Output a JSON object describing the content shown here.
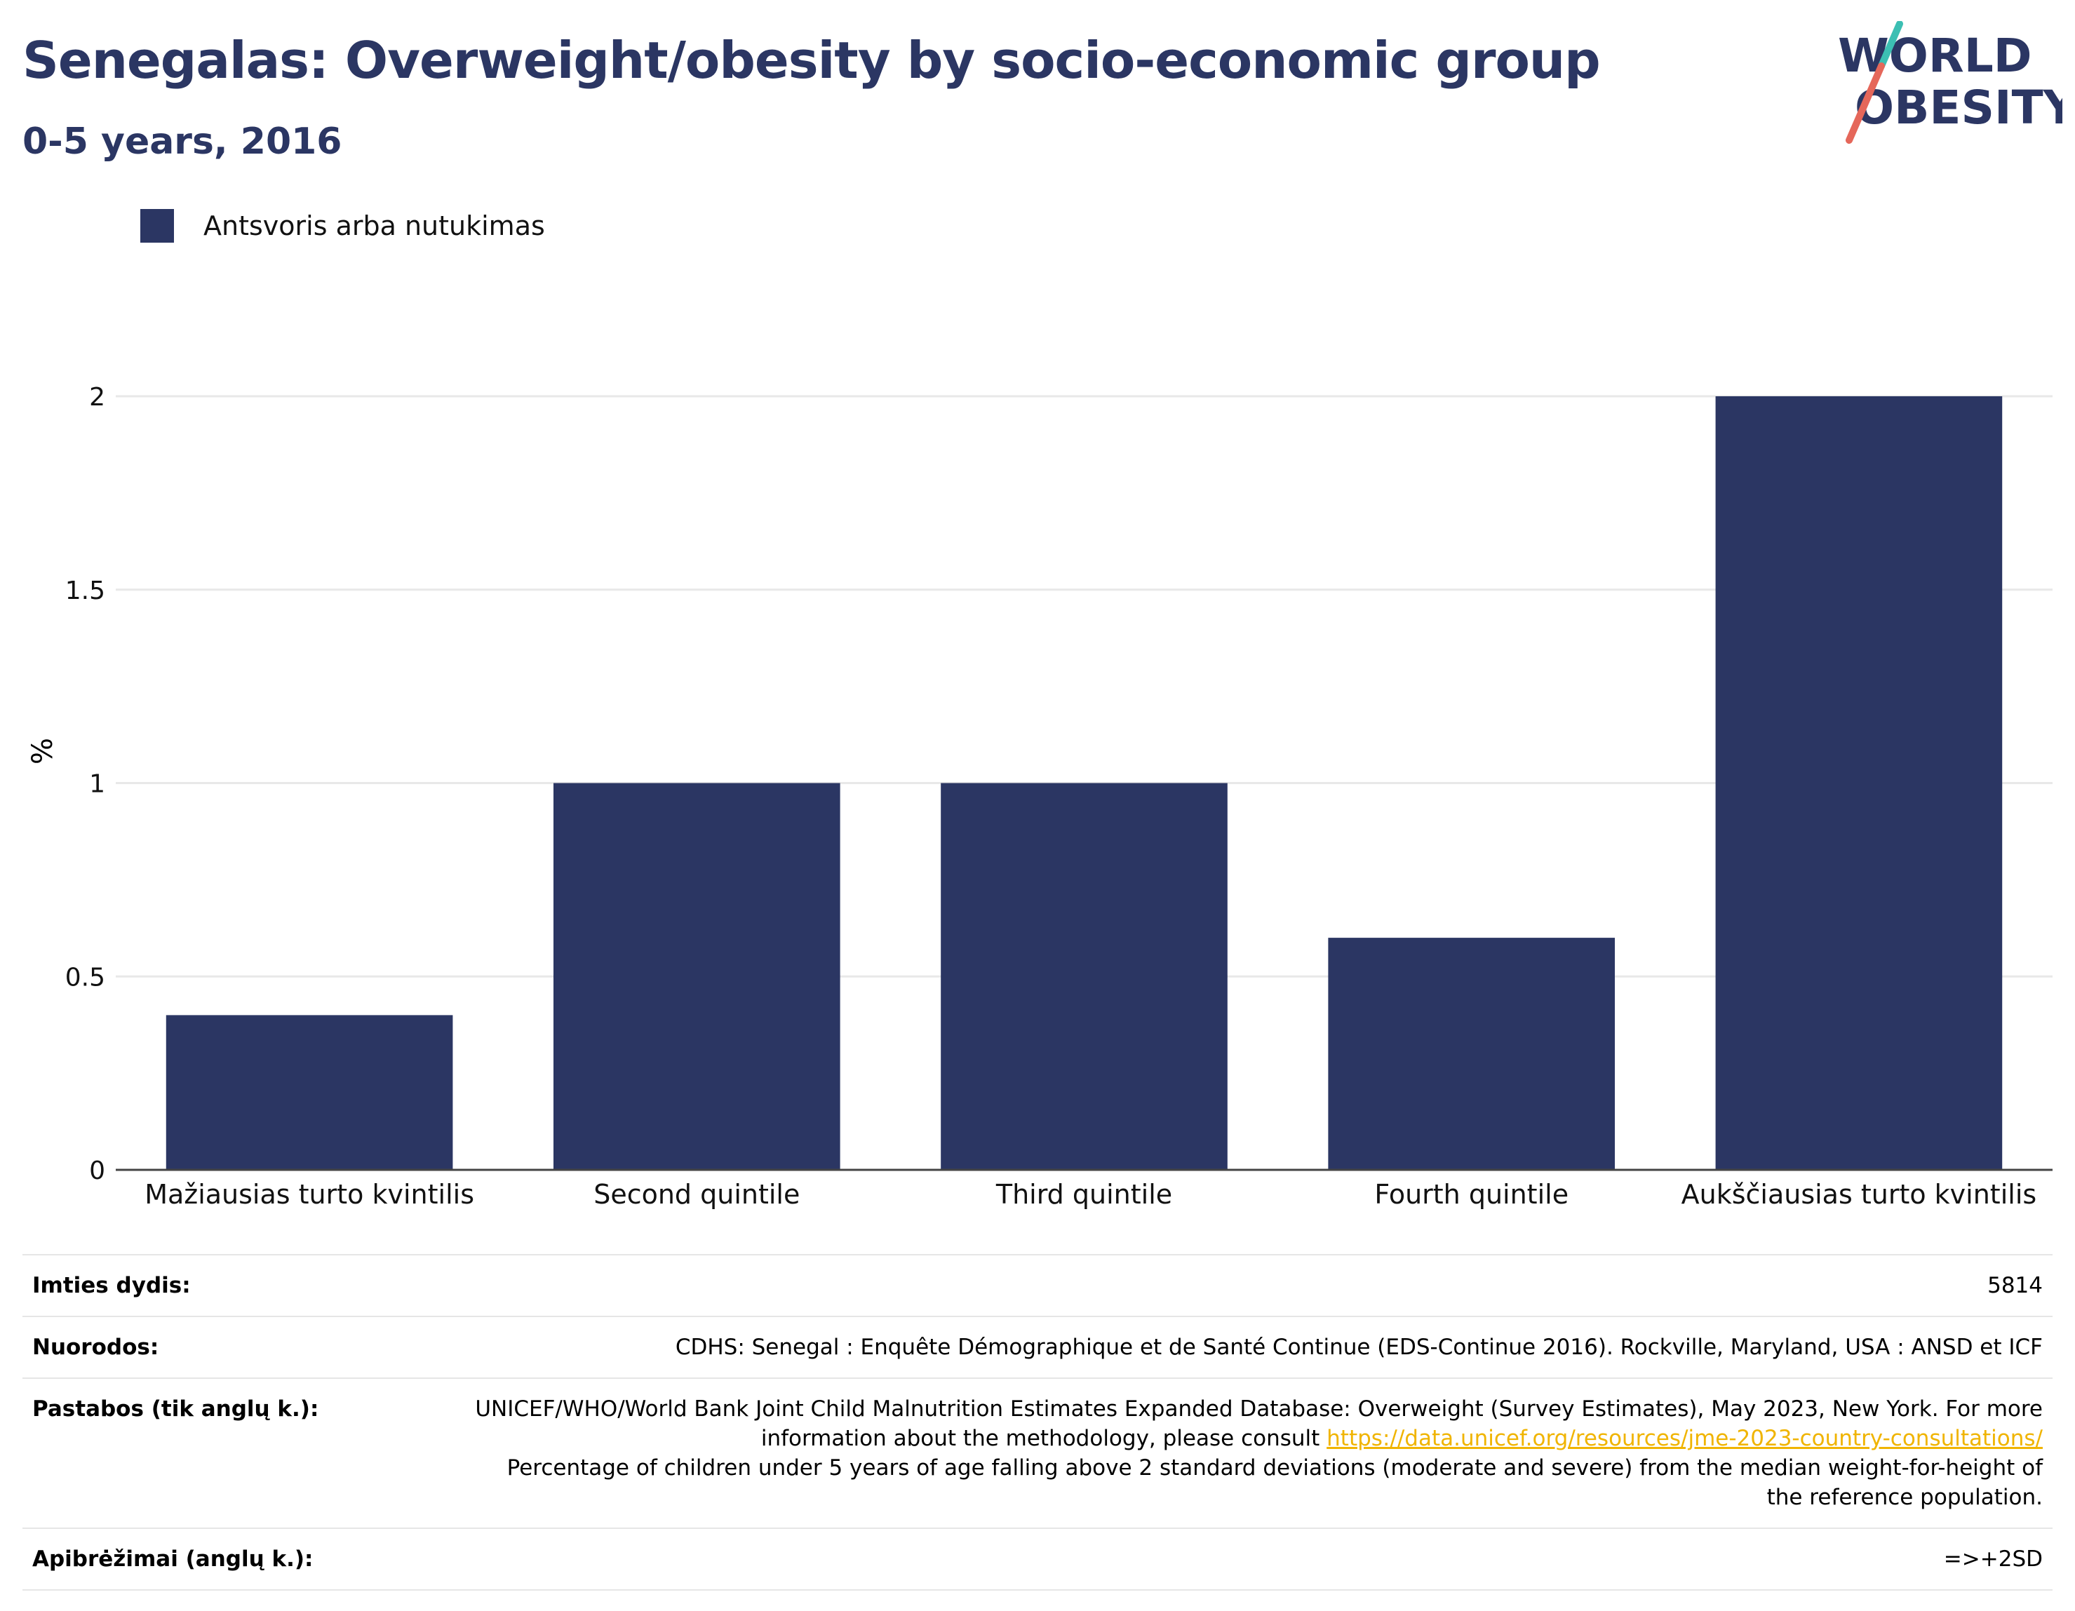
{
  "header": {
    "title": "Senegalas: Overweight/obesity by socio-economic group",
    "subtitle": "0-5 years, 2016",
    "logo_text_line1": "WORLD",
    "logo_text_line2": "OBESITY"
  },
  "legend": {
    "label": "Antsvoris arba nutukimas",
    "color": "#2b3663"
  },
  "chart_data": {
    "type": "bar",
    "title": "Senegalas: Overweight/obesity by socio-economic group",
    "subtitle": "0-5 years, 2016",
    "categories": [
      "Mažiausias turto kvintilis",
      "Second quintile",
      "Third quintile",
      "Fourth quintile",
      "Aukščiausias turto kvintilis"
    ],
    "series": [
      {
        "name": "Antsvoris arba nutukimas",
        "values": [
          0.4,
          1.0,
          1.0,
          0.6,
          2.0
        ],
        "color": "#2b3663"
      }
    ],
    "ylabel": "%",
    "ylim": [
      0,
      2.0
    ],
    "yticks": [
      0,
      0.5,
      1,
      1.5,
      2
    ],
    "ytick_labels": [
      "0",
      "0.5",
      "1",
      "1.5",
      "2"
    ],
    "grid": true,
    "legend_position": "top-left"
  },
  "info": {
    "rows": [
      {
        "key": "Imties dydis:",
        "value": "5814"
      },
      {
        "key": "Nuorodos:",
        "value": "CDHS: Senegal : Enquête Démographique et de Santé Continue (EDS-Continue 2016). Rockville, Maryland, USA : ANSD et ICF"
      },
      {
        "key": "Pastabos (tik anglų k.):",
        "value_before_link": "UNICEF/WHO/World Bank Joint Child Malnutrition Estimates Expanded Database: Overweight (Survey Estimates), May 2023, New York. For more information about the methodology, please consult",
        "link": "https://data.unicef.org/resources/jme-2023-country-consultations/",
        "value_after_link": "Percentage of children under 5 years of age falling above 2 standard deviations (moderate and severe) from the median weight-for-height of the reference population."
      },
      {
        "key": "Apibrėžimai (anglų k.):",
        "value": "=>+2SD"
      }
    ]
  }
}
